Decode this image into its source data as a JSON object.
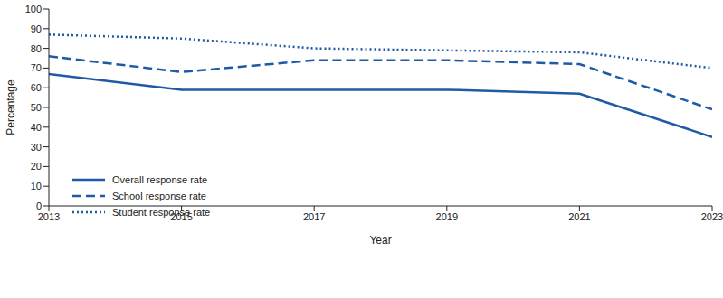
{
  "chart_data": {
    "type": "line",
    "x_label": "Year",
    "y_label": "Percentage",
    "x": [
      2013,
      2015,
      2017,
      2019,
      2021,
      2023
    ],
    "xlim": [
      2013,
      2023
    ],
    "xticks": [
      2013,
      2015,
      2017,
      2019,
      2021,
      2023
    ],
    "ylim": [
      0,
      100
    ],
    "yticks": [
      0,
      10,
      20,
      30,
      40,
      50,
      60,
      70,
      80,
      90,
      100
    ],
    "grid": false,
    "legend": "lower left",
    "series": [
      {
        "name": "Overall response rate",
        "color": "#1f5aa6",
        "line_style": "solid",
        "values": [
          67,
          59,
          59,
          59,
          57,
          35
        ]
      },
      {
        "name": "School response rate",
        "color": "#1f5aa6",
        "line_style": "dashed",
        "values": [
          76,
          68,
          74,
          74,
          72,
          49
        ]
      },
      {
        "name": "Student response rate",
        "color": "#1f5aa6",
        "line_style": "dotted",
        "values": [
          87,
          85,
          80,
          79,
          78,
          70
        ]
      }
    ]
  }
}
